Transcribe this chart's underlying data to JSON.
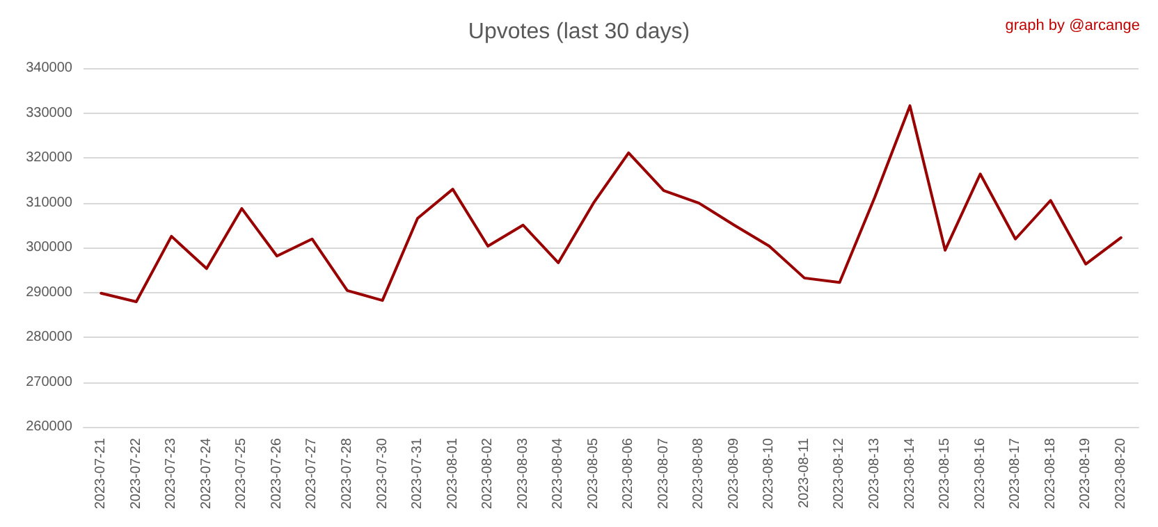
{
  "chart_data": {
    "type": "line",
    "title": "Upvotes (last 30 days)",
    "annotations": [
      "graph by @arcange"
    ],
    "categories": [
      "2023-07-21",
      "2023-07-22",
      "2023-07-23",
      "2023-07-24",
      "2023-07-25",
      "2023-07-26",
      "2023-07-27",
      "2023-07-28",
      "2023-07-30",
      "2023-07-31",
      "2023-08-01",
      "2023-08-02",
      "2023-08-03",
      "2023-08-04",
      "2023-08-05",
      "2023-08-06",
      "2023-08-07",
      "2023-08-08",
      "2023-08-09",
      "2023-08-10",
      "2023-08-11",
      "2023-08-12",
      "2023-08-13",
      "2023-08-14",
      "2023-08-15",
      "2023-08-16",
      "2023-08-17",
      "2023-08-18",
      "2023-08-19",
      "2023-08-20"
    ],
    "series": [
      {
        "color": "#990000",
        "values": [
          289800,
          287900,
          302500,
          295300,
          308700,
          298100,
          301900,
          290400,
          288200,
          306500,
          313000,
          300300,
          305000,
          296600,
          309900,
          321100,
          312700,
          309900,
          305000,
          300300,
          293200,
          292200,
          311200,
          331600,
          299400,
          316400,
          301900,
          310500,
          296300,
          302200
        ]
      }
    ],
    "ylim": [
      260000,
      340000
    ],
    "yticks": [
      260000,
      270000,
      280000,
      290000,
      300000,
      310000,
      320000,
      330000,
      340000
    ],
    "grid": "y",
    "marker": "none",
    "line_style": "solid"
  }
}
